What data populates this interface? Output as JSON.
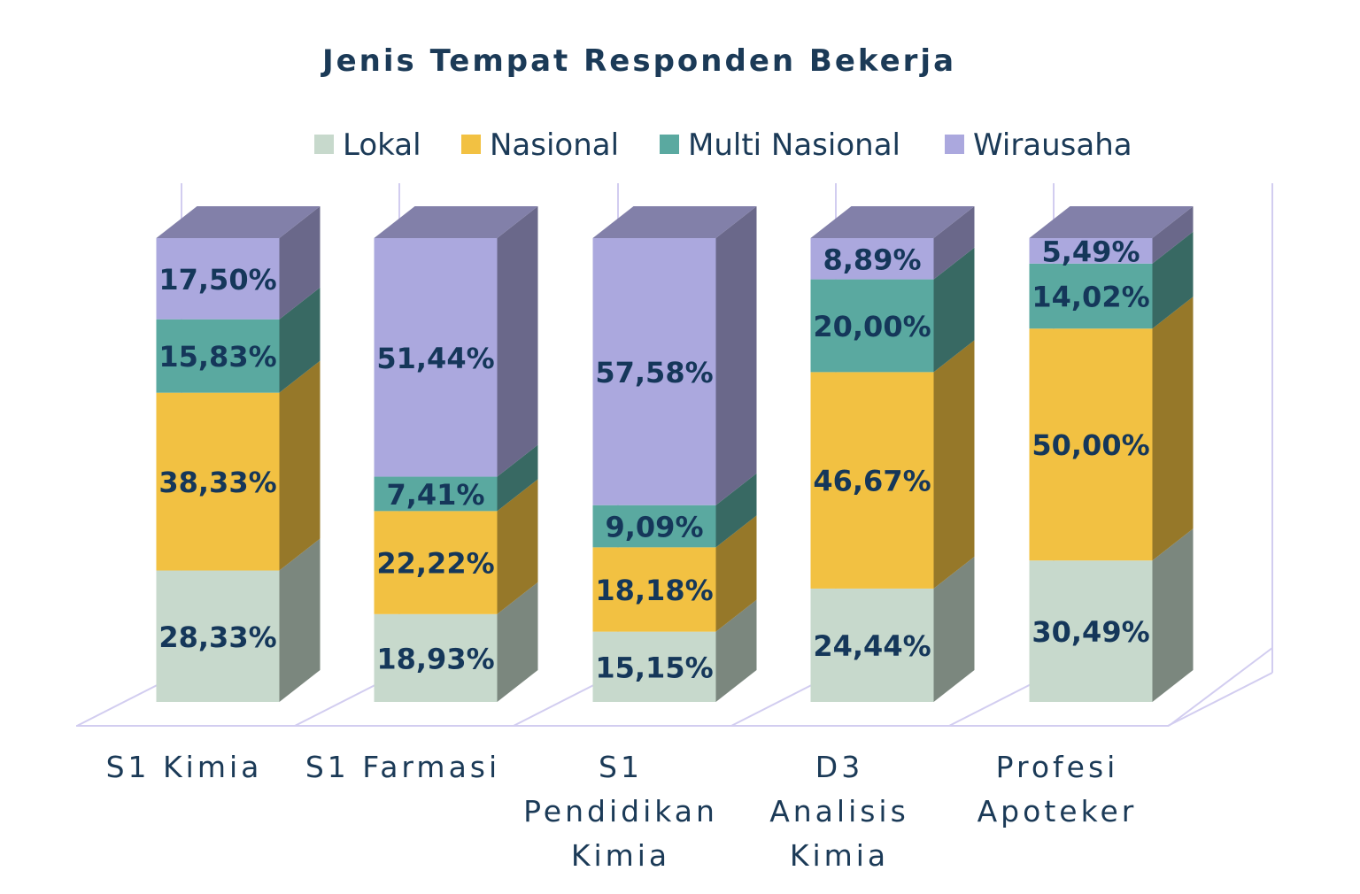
{
  "chart_data": {
    "type": "bar",
    "stacked": true,
    "three_d": true,
    "title": "Jenis Tempat Responden Bekerja",
    "legend_position": "top",
    "categories": [
      [
        "S1 Kimia"
      ],
      [
        "S1 Farmasi"
      ],
      [
        "S1",
        "Pendidikan",
        "Kimia"
      ],
      [
        "D3",
        "Analisis",
        "Kimia"
      ],
      [
        "Profesi",
        "Apoteker"
      ]
    ],
    "series": [
      {
        "name": "Lokal",
        "color": "#c7d9cc",
        "values": [
          28.33,
          18.93,
          15.15,
          24.44,
          30.49
        ],
        "labels": [
          "28,33%",
          "18,93%",
          "15,15%",
          "24,44%",
          "30,49%"
        ]
      },
      {
        "name": "Nasional",
        "color": "#f2c142",
        "values": [
          38.33,
          22.22,
          18.18,
          46.67,
          50.0
        ],
        "labels": [
          "38,33%",
          "22,22%",
          "18,18%",
          "46,67%",
          "50,00%"
        ]
      },
      {
        "name": "Multi Nasional",
        "color": "#5aa9a0",
        "values": [
          15.83,
          7.41,
          9.09,
          20.0,
          14.02
        ],
        "labels": [
          "15,83%",
          "7,41%",
          "9,09%",
          "20,00%",
          "14,02%"
        ]
      },
      {
        "name": "Wirausaha",
        "color": "#aba8de",
        "values": [
          17.5,
          51.44,
          57.58,
          8.89,
          5.49
        ],
        "labels": [
          "17,50%",
          "51,44%",
          "57,58%",
          "8,89%",
          "5,49%"
        ]
      }
    ],
    "ylim": [
      0,
      100
    ],
    "grid": false,
    "wall_color": "#d2cdf0",
    "label_color": "#15375a"
  }
}
